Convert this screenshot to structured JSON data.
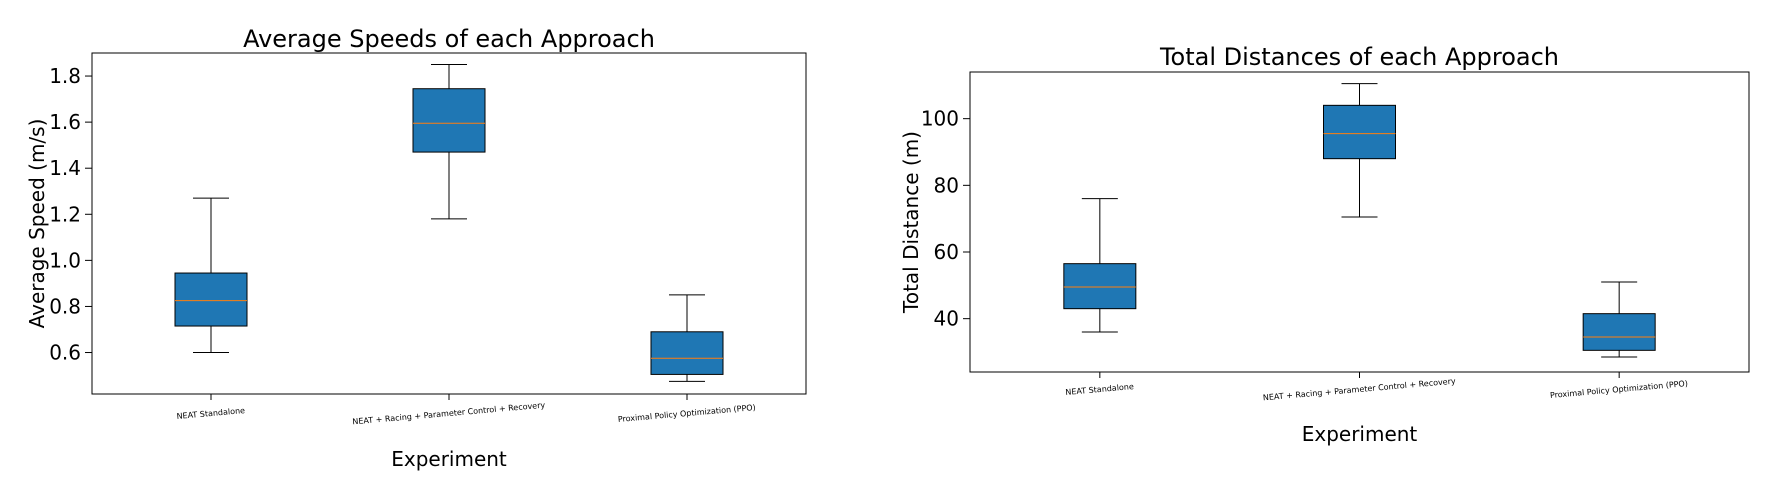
{
  "chart_data": [
    {
      "type": "box",
      "title": "Average Speeds of each Approach",
      "xlabel": "Experiment",
      "ylabel": "Average Speed (m/s)",
      "ylim": [
        0.42,
        1.9
      ],
      "yticks": [
        "0.6",
        "0.8",
        "1.0",
        "1.2",
        "1.4",
        "1.6",
        "1.8"
      ],
      "categories": [
        "NEAT Standalone",
        "NEAT + Racing + Parameter Control + Recovery",
        "Proximal Policy Optimization (PPO)"
      ],
      "boxes": [
        {
          "whislo": 0.6,
          "q1": 0.715,
          "med": 0.825,
          "q3": 0.945,
          "whishi": 1.27
        },
        {
          "whislo": 1.18,
          "q1": 1.47,
          "med": 1.595,
          "q3": 1.745,
          "whishi": 1.85
        },
        {
          "whislo": 0.475,
          "q1": 0.505,
          "med": 0.575,
          "q3": 0.69,
          "whishi": 0.85
        }
      ],
      "box_color": "#1f77b4",
      "median_color": "#ff7f0e",
      "grid": false
    },
    {
      "type": "box",
      "title": "Total Distances of each Approach",
      "xlabel": "Experiment",
      "ylabel": "Total Distance (m)",
      "ylim": [
        24,
        114
      ],
      "yticks": [
        "40",
        "60",
        "80",
        "100"
      ],
      "categories": [
        "NEAT Standalone",
        "NEAT + Racing + Parameter Control + Recovery",
        "Proximal Policy Optimization (PPO)"
      ],
      "boxes": [
        {
          "whislo": 36,
          "q1": 43,
          "med": 49.5,
          "q3": 56.5,
          "whishi": 76
        },
        {
          "whislo": 70.5,
          "q1": 88,
          "med": 95.5,
          "q3": 104,
          "whishi": 110.5
        },
        {
          "whislo": 28.5,
          "q1": 30.5,
          "med": 34.5,
          "q3": 41.5,
          "whishi": 51
        }
      ],
      "box_color": "#1f77b4",
      "median_color": "#ff7f0e",
      "grid": false
    }
  ]
}
